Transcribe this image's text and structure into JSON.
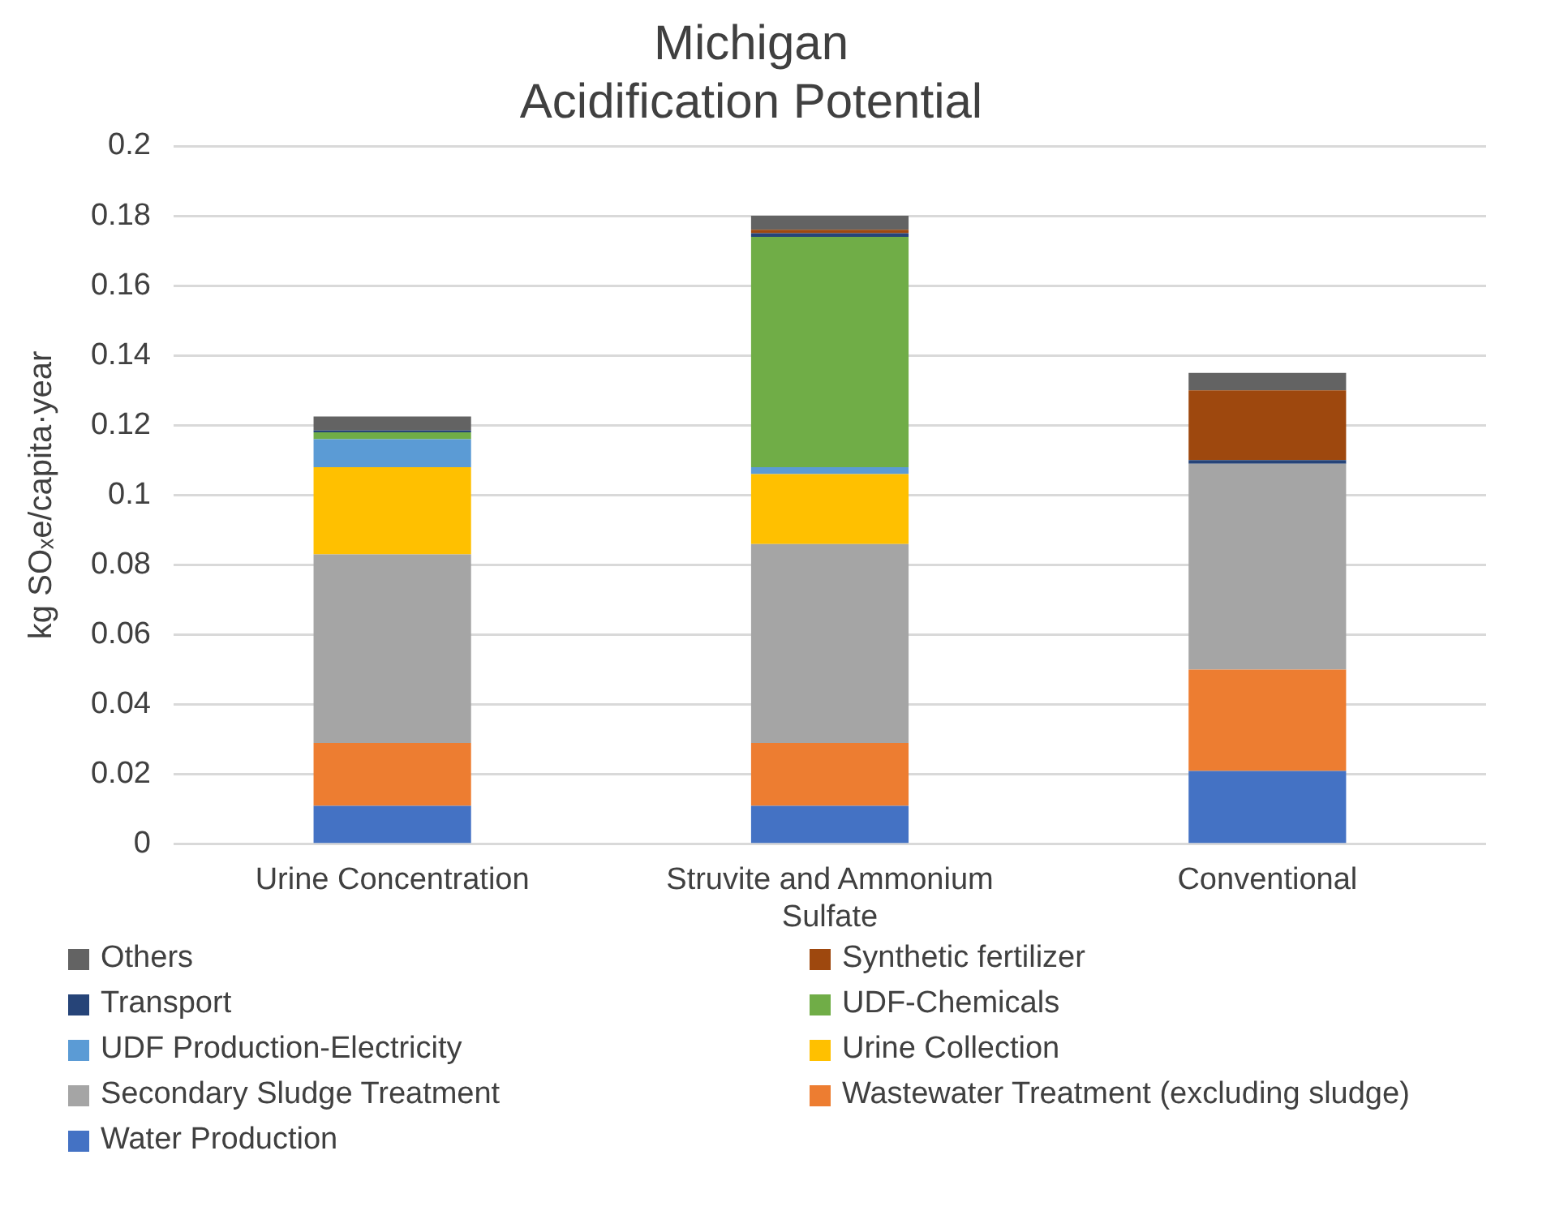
{
  "chart_data": {
    "type": "bar",
    "stacked": true,
    "title": "Michigan\nAcidification Potential",
    "ylabel": "kg SOₓe/capita·year",
    "categories": [
      "Urine Concentration",
      "Struvite and Ammonium Sulfate",
      "Conventional"
    ],
    "ylim": [
      0,
      0.2
    ],
    "yticks": [
      0,
      0.02,
      0.04,
      0.06,
      0.08,
      0.1,
      0.12,
      0.14,
      0.16,
      0.18,
      0.2
    ],
    "grid": "y",
    "legend": "bottom",
    "series": [
      {
        "name": "Water Production",
        "color": "#4472c4",
        "values": [
          0.011,
          0.011,
          0.021
        ]
      },
      {
        "name": "Wastewater Treatment (excluding sludge)",
        "color": "#ed7d31",
        "values": [
          0.018,
          0.018,
          0.029
        ]
      },
      {
        "name": "Secondary Sludge Treatment",
        "color": "#a5a5a5",
        "values": [
          0.054,
          0.057,
          0.059
        ]
      },
      {
        "name": "Urine Collection",
        "color": "#ffc000",
        "values": [
          0.025,
          0.02,
          0
        ]
      },
      {
        "name": "UDF Production-Electricity",
        "color": "#5b9bd5",
        "values": [
          0.008,
          0.002,
          0
        ]
      },
      {
        "name": "UDF-Chemicals",
        "color": "#70ad47",
        "values": [
          0.002,
          0.066,
          0
        ]
      },
      {
        "name": "Transport",
        "color": "#264478",
        "values": [
          0.0005,
          0.001,
          0.001
        ]
      },
      {
        "name": "Synthetic fertilizer",
        "color": "#9e480e",
        "values": [
          0,
          0.001,
          0.02
        ]
      },
      {
        "name": "Others",
        "color": "#636363",
        "values": [
          0.004,
          0.004,
          0.005
        ]
      }
    ]
  }
}
